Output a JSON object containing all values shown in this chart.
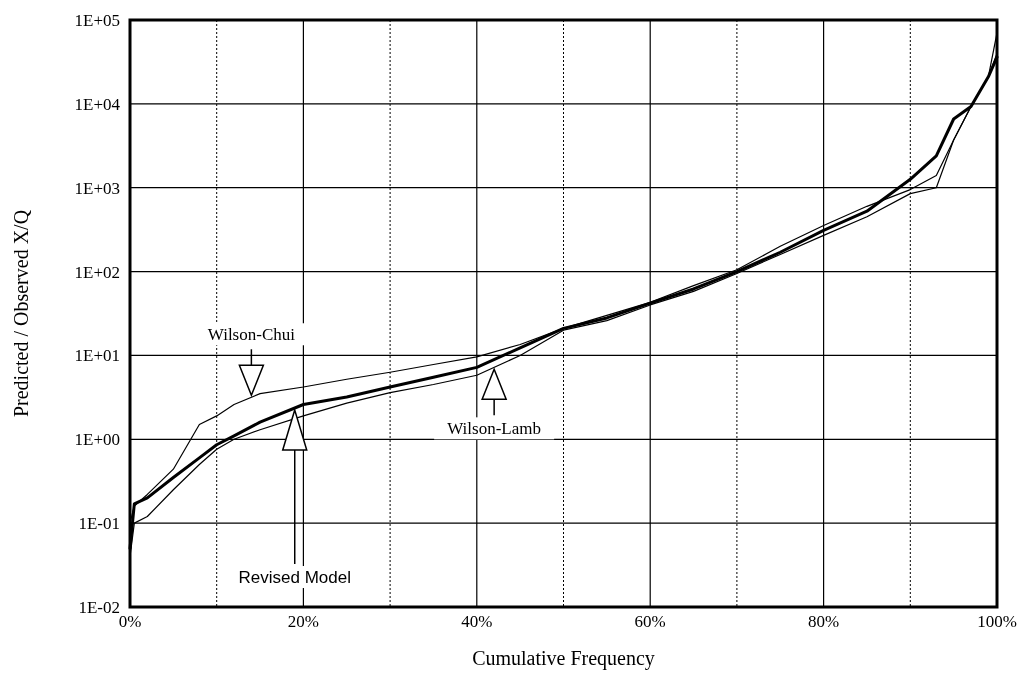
{
  "chart_data": {
    "type": "line",
    "xlabel": "Cumulative Frequency",
    "ylabel": "Predicted / Observed X/Q",
    "log": "y",
    "grid": true,
    "line_style": "solid",
    "x": [
      0,
      0.5,
      2,
      5,
      8,
      10,
      12,
      15,
      20,
      25,
      30,
      35,
      40,
      45,
      50,
      55,
      60,
      65,
      70,
      75,
      80,
      85,
      90,
      93,
      95,
      97,
      99,
      100
    ],
    "xlim": [
      0,
      100
    ],
    "ylim": [
      0.01,
      100000
    ],
    "xticks": [
      {
        "value": 0,
        "label": "0%"
      },
      {
        "value": 10,
        "label": null
      },
      {
        "value": 20,
        "label": "20%"
      },
      {
        "value": 30,
        "label": null
      },
      {
        "value": 40,
        "label": "40%"
      },
      {
        "value": 50,
        "label": null
      },
      {
        "value": 60,
        "label": "60%"
      },
      {
        "value": 70,
        "label": null
      },
      {
        "value": 80,
        "label": "80%"
      },
      {
        "value": 90,
        "label": null
      },
      {
        "value": 100,
        "label": "100%"
      }
    ],
    "yticks": [
      {
        "value": 0.01,
        "label": "1E-02"
      },
      {
        "value": 0.1,
        "label": "1E-01"
      },
      {
        "value": 1,
        "label": "1E+00"
      },
      {
        "value": 10,
        "label": "1E+01"
      },
      {
        "value": 100,
        "label": "1E+02"
      },
      {
        "value": 1000,
        "label": "1E+03"
      },
      {
        "value": 10000,
        "label": "1E+04"
      },
      {
        "value": 100000,
        "label": "1E+05"
      }
    ],
    "series": [
      {
        "name": "Wilson-Chui",
        "color": "#000000",
        "values": [
          0.1,
          0.16,
          0.22,
          0.44,
          1.5,
          1.9,
          2.6,
          3.5,
          4.2,
          5.2,
          6.3,
          7.8,
          9.6,
          13.5,
          21,
          30,
          43,
          68,
          105,
          200,
          355,
          600,
          950,
          1400,
          3700,
          9300,
          21000,
          70000
        ]
      },
      {
        "name": "Revised Model",
        "color": "#000000",
        "values": [
          0.05,
          0.17,
          0.2,
          0.35,
          0.6,
          0.86,
          1.1,
          1.6,
          2.6,
          3.2,
          4.2,
          5.5,
          7.2,
          12.3,
          21,
          28,
          42,
          62,
          100,
          170,
          310,
          525,
          1260,
          2400,
          6600,
          9300,
          21000,
          36000
        ]
      },
      {
        "name": "Wilson-Lamb",
        "color": "#000000",
        "values": [
          0.04,
          0.1,
          0.12,
          0.25,
          0.5,
          0.76,
          1.0,
          1.3,
          1.9,
          2.7,
          3.6,
          4.5,
          5.8,
          10,
          20,
          26,
          40,
          58,
          95,
          160,
          270,
          450,
          850,
          1000,
          3700,
          9300,
          21000,
          40000
        ]
      }
    ]
  }
}
